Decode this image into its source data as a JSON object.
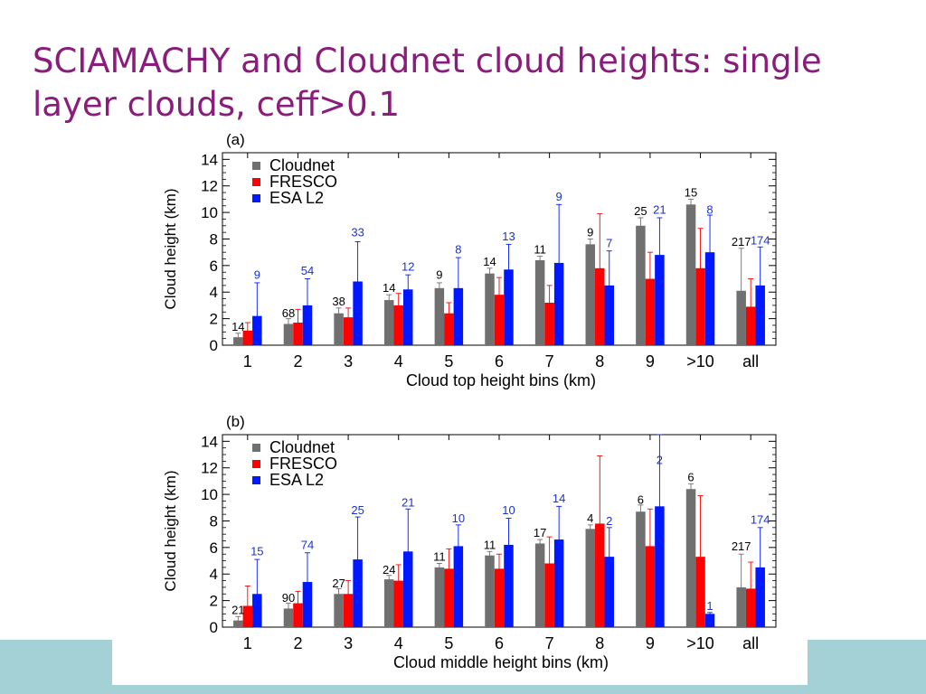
{
  "slide": {
    "title": "SCIAMACHY and Cloudnet cloud heights: single layer clouds, ceff>0.1"
  },
  "colors": {
    "title": "#8a1c7c",
    "band": "#a3d1d6",
    "cloudnet": "#707070",
    "fresco": "#ff0000",
    "esa": "#0018ff",
    "count_cloudnet": "#000000",
    "count_esa": "#1a33cc"
  },
  "chart_data": [
    {
      "type": "bar",
      "panel_label": "(a)",
      "ylabel": "Cloud height (km)",
      "xlabel": "Cloud top height bins (km)",
      "ylim": [
        0,
        14.5
      ],
      "yticks": [
        0,
        2,
        4,
        6,
        8,
        10,
        12,
        14
      ],
      "legend_position": "top-left",
      "categories": [
        "1",
        "2",
        "3",
        "4",
        "5",
        "6",
        "7",
        "8",
        "9",
        ">10",
        "all"
      ],
      "series": [
        {
          "name": "Cloudnet",
          "color_key": "cloudnet",
          "values": [
            0.6,
            1.6,
            2.4,
            3.4,
            4.3,
            5.4,
            6.4,
            7.6,
            9.0,
            10.6,
            4.1
          ],
          "err": [
            0.3,
            0.4,
            0.4,
            0.4,
            0.4,
            0.4,
            0.3,
            0.4,
            0.6,
            0.4,
            3.2
          ]
        },
        {
          "name": "FRESCO",
          "color_key": "fresco",
          "values": [
            1.1,
            1.7,
            2.1,
            3.0,
            2.4,
            3.8,
            3.2,
            5.8,
            5.0,
            5.8,
            2.9
          ],
          "err": [
            0.6,
            1.0,
            0.7,
            0.9,
            0.8,
            1.3,
            1.3,
            4.1,
            2.0,
            3.0,
            2.1
          ]
        },
        {
          "name": "ESA L2",
          "color_key": "esa",
          "values": [
            2.2,
            3.0,
            4.8,
            4.2,
            4.3,
            5.7,
            6.2,
            4.5,
            6.8,
            7.0,
            4.5
          ],
          "err": [
            2.5,
            2.0,
            3.0,
            1.1,
            2.3,
            1.9,
            4.4,
            2.6,
            2.8,
            2.8,
            2.9
          ]
        }
      ],
      "count_labels": [
        {
          "category": "1",
          "series": "Cloudnet",
          "text": "14",
          "y": 1.1
        },
        {
          "category": "1",
          "series": "ESA L2",
          "text": "9",
          "y": 5.0
        },
        {
          "category": "2",
          "series": "Cloudnet",
          "text": "68",
          "y": 2.1
        },
        {
          "category": "2",
          "series": "ESA L2",
          "text": "54",
          "y": 5.3
        },
        {
          "category": "3",
          "series": "Cloudnet",
          "text": "38",
          "y": 3.0
        },
        {
          "category": "3",
          "series": "ESA L2",
          "text": "33",
          "y": 8.2
        },
        {
          "category": "4",
          "series": "Cloudnet",
          "text": "14",
          "y": 4.0
        },
        {
          "category": "4",
          "series": "ESA L2",
          "text": "12",
          "y": 5.6
        },
        {
          "category": "5",
          "series": "Cloudnet",
          "text": "9",
          "y": 5.0
        },
        {
          "category": "5",
          "series": "ESA L2",
          "text": "8",
          "y": 6.9
        },
        {
          "category": "6",
          "series": "Cloudnet",
          "text": "14",
          "y": 6.0
        },
        {
          "category": "6",
          "series": "ESA L2",
          "text": "13",
          "y": 7.9
        },
        {
          "category": "7",
          "series": "Cloudnet",
          "text": "11",
          "y": 6.9
        },
        {
          "category": "7",
          "series": "ESA L2",
          "text": "9",
          "y": 10.9
        },
        {
          "category": "8",
          "series": "Cloudnet",
          "text": "9",
          "y": 8.2
        },
        {
          "category": "8",
          "series": "ESA L2",
          "text": "7",
          "y": 7.4
        },
        {
          "category": "9",
          "series": "Cloudnet",
          "text": "25",
          "y": 9.8
        },
        {
          "category": "9",
          "series": "ESA L2",
          "text": "21",
          "y": 9.9
        },
        {
          "category": ">10",
          "series": "Cloudnet",
          "text": "15",
          "y": 11.2
        },
        {
          "category": ">10",
          "series": "ESA L2",
          "text": "8",
          "y": 9.9
        },
        {
          "category": "all",
          "series": "Cloudnet",
          "text": "217",
          "y": 7.5
        },
        {
          "category": "all",
          "series": "ESA L2",
          "text": "174",
          "y": 7.6
        }
      ]
    },
    {
      "type": "bar",
      "panel_label": "(b)",
      "ylabel": "Cloud height (km)",
      "xlabel": "Cloud middle height bins (km)",
      "ylim": [
        0,
        14.5
      ],
      "yticks": [
        0,
        2,
        4,
        6,
        8,
        10,
        12,
        14
      ],
      "legend_position": "top-left",
      "categories": [
        "1",
        "2",
        "3",
        "4",
        "5",
        "6",
        "7",
        "8",
        "9",
        ">10",
        "all"
      ],
      "series": [
        {
          "name": "Cloudnet",
          "color_key": "cloudnet",
          "values": [
            0.5,
            1.4,
            2.5,
            3.6,
            4.5,
            5.4,
            6.3,
            7.4,
            8.7,
            10.4,
            3.0
          ],
          "err": [
            0.3,
            0.4,
            0.4,
            0.3,
            0.3,
            0.3,
            0.3,
            0.3,
            0.5,
            0.4,
            2.5
          ]
        },
        {
          "name": "FRESCO",
          "color_key": "fresco",
          "values": [
            1.6,
            1.8,
            2.5,
            3.5,
            4.4,
            4.4,
            4.8,
            7.8,
            6.1,
            5.3,
            2.9
          ],
          "err": [
            1.5,
            0.9,
            1.0,
            1.2,
            1.5,
            1.1,
            2.0,
            5.1,
            2.8,
            4.6,
            2.0
          ]
        },
        {
          "name": "ESA L2",
          "color_key": "esa",
          "values": [
            2.5,
            3.4,
            5.1,
            5.7,
            6.1,
            6.2,
            6.6,
            5.3,
            9.1,
            1.0,
            4.5
          ],
          "err": [
            2.6,
            2.2,
            3.2,
            3.2,
            1.6,
            2.0,
            2.5,
            2.2,
            5.4,
            0.1,
            3.0
          ]
        }
      ],
      "count_labels": [
        {
          "category": "1",
          "series": "Cloudnet",
          "text": "21",
          "y": 1.0
        },
        {
          "category": "1",
          "series": "ESA L2",
          "text": "15",
          "y": 5.4
        },
        {
          "category": "2",
          "series": "Cloudnet",
          "text": "90",
          "y": 1.9
        },
        {
          "category": "2",
          "series": "ESA L2",
          "text": "74",
          "y": 5.9
        },
        {
          "category": "3",
          "series": "Cloudnet",
          "text": "27",
          "y": 3.0
        },
        {
          "category": "3",
          "series": "ESA L2",
          "text": "25",
          "y": 8.5
        },
        {
          "category": "4",
          "series": "Cloudnet",
          "text": "24",
          "y": 4.0
        },
        {
          "category": "4",
          "series": "ESA L2",
          "text": "21",
          "y": 9.1
        },
        {
          "category": "5",
          "series": "Cloudnet",
          "text": "11",
          "y": 5.0
        },
        {
          "category": "5",
          "series": "ESA L2",
          "text": "10",
          "y": 7.9
        },
        {
          "category": "6",
          "series": "Cloudnet",
          "text": "11",
          "y": 5.9
        },
        {
          "category": "6",
          "series": "ESA L2",
          "text": "10",
          "y": 8.5
        },
        {
          "category": "7",
          "series": "Cloudnet",
          "text": "17",
          "y": 6.8
        },
        {
          "category": "7",
          "series": "ESA L2",
          "text": "14",
          "y": 9.4
        },
        {
          "category": "8",
          "series": "Cloudnet",
          "text": "4",
          "y": 7.9
        },
        {
          "category": "8",
          "series": "ESA L2",
          "text": "2",
          "y": 7.7
        },
        {
          "category": "9",
          "series": "Cloudnet",
          "text": "6",
          "y": 9.3
        },
        {
          "category": "9",
          "series": "ESA L2",
          "text": "2",
          "y": 12.3
        },
        {
          "category": ">10",
          "series": "Cloudnet",
          "text": "6",
          "y": 11.0
        },
        {
          "category": ">10",
          "series": "ESA L2",
          "text": "1",
          "y": 1.3
        },
        {
          "category": "all",
          "series": "Cloudnet",
          "text": "217",
          "y": 5.8
        },
        {
          "category": "all",
          "series": "ESA L2",
          "text": "174",
          "y": 7.8
        }
      ]
    }
  ]
}
